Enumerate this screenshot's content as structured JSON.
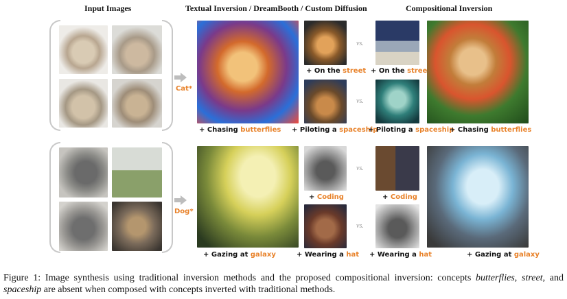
{
  "headers": {
    "input": "Input Images",
    "traditional": "Textual Inversion / DreamBooth / Custom Diffusion",
    "compositional": "Compositional Inversion"
  },
  "concepts": {
    "cat": "Cat*",
    "dog": "Dog*"
  },
  "vs_label": "vs.",
  "labels": {
    "cat_chasing_prefix": "+ Chasing ",
    "cat_chasing_kw": "butterflies",
    "cat_street_prefix": "+ On the ",
    "cat_street_kw": "street",
    "cat_spaceship_prefix": "+ Piloting a ",
    "cat_spaceship_kw": "spaceship",
    "dog_galaxy_prefix": "+ Gazing at ",
    "dog_galaxy_kw": "galaxy",
    "dog_coding_prefix": "+ ",
    "dog_coding_kw": "Coding",
    "dog_hat_prefix": "+ Wearing a ",
    "dog_hat_kw": "hat"
  },
  "caption": {
    "part1": "Figure 1: Image synthesis using traditional inversion methods and the proposed compositional inversion: concepts ",
    "kw1": "butterflies",
    "sep1": ", ",
    "kw2": "street",
    "sep2": ", and ",
    "kw3": "spaceship",
    "part2": " are absent when composed with concepts inverted with traditional methods."
  },
  "colors": {
    "keyword": "#e8822a",
    "bracket": "#c8c8c8"
  }
}
